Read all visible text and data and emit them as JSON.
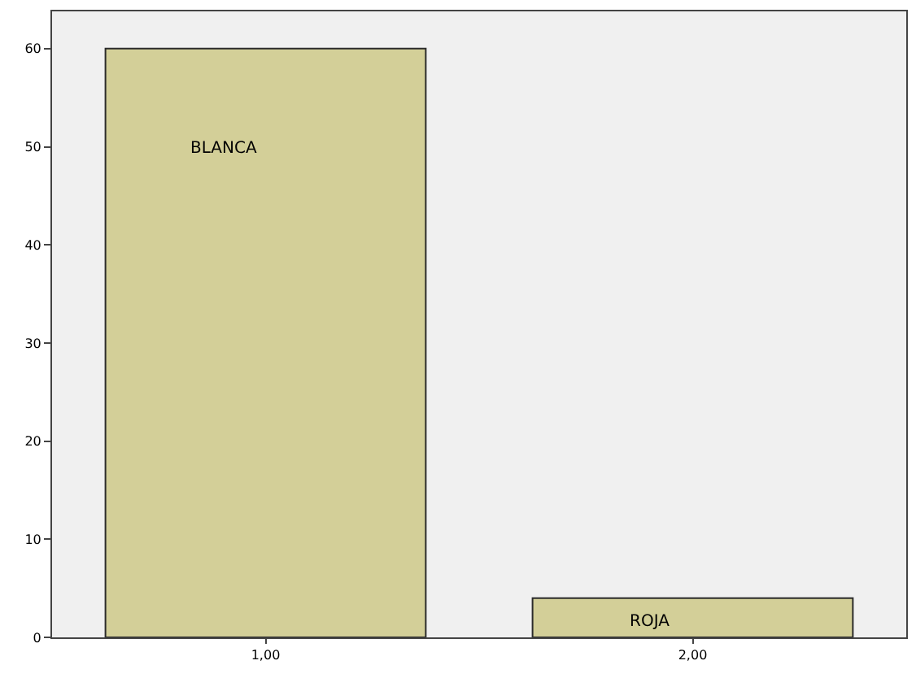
{
  "chart_data": {
    "type": "bar",
    "categories": [
      "1,00",
      "2,00"
    ],
    "values": [
      60,
      4
    ],
    "color": "#d3cf98",
    "ylim": [
      0,
      63.8
    ],
    "yticks": [
      0,
      10,
      20,
      30,
      40,
      50,
      60
    ],
    "grid": false,
    "annotations": [
      "BLANCA",
      "ROJA"
    ]
  }
}
